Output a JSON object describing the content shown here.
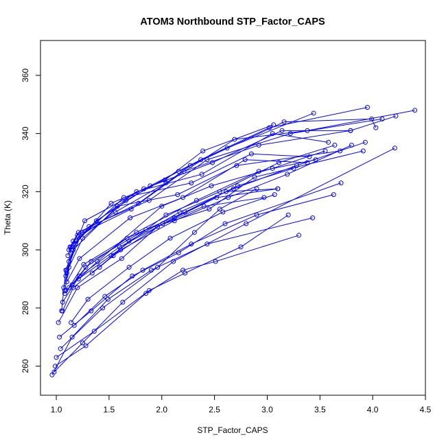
{
  "chart_data": {
    "type": "line",
    "title": "ATOM3 Northbound STP_Factor_CAPS",
    "xlabel": "STP_Factor_CAPS",
    "ylabel": "Theta (K)",
    "xlim": [
      0.85,
      4.5
    ],
    "ylim": [
      250,
      372
    ],
    "xticks": [
      1.0,
      1.5,
      2.0,
      2.5,
      3.0,
      3.5,
      4.0,
      4.5
    ],
    "xtick_labels": [
      "1.0",
      "1.5",
      "2.0",
      "2.5",
      "3.0",
      "3.5",
      "4.0",
      "4.5"
    ],
    "yticks": [
      260,
      280,
      300,
      320,
      340,
      360
    ],
    "ytick_labels": [
      "260",
      "280",
      "300",
      "320",
      "340",
      "360"
    ],
    "grid": false,
    "color": "#0000ff",
    "marker": "open-circle",
    "series": [
      {
        "x": [
          1.05,
          1.09,
          1.18,
          1.52,
          2.03,
          2.39,
          3.06
        ],
        "y": [
          279,
          293,
          302,
          316,
          324,
          334,
          343
        ]
      },
      {
        "x": [
          1.08,
          1.12,
          1.25,
          1.66,
          2.16,
          2.62,
          3.44
        ],
        "y": [
          286,
          294,
          304,
          317,
          327,
          335,
          347
        ]
      },
      {
        "x": [
          1.1,
          1.14,
          1.38,
          1.89,
          2.37,
          3.02,
          3.95
        ],
        "y": [
          292,
          301,
          310,
          322,
          331,
          342,
          349
        ]
      },
      {
        "x": [
          1.11,
          1.16,
          1.56,
          2.04,
          2.69,
          3.38,
          4.4
        ],
        "y": [
          298,
          303,
          313,
          323,
          338,
          341,
          348
        ]
      },
      {
        "x": [
          1.12,
          1.2,
          1.71,
          2.21,
          2.92,
          3.79,
          4.22
        ],
        "y": [
          300,
          305,
          314,
          327,
          336,
          341,
          346
        ]
      },
      {
        "x": [
          1.13,
          1.21,
          1.78,
          2.27,
          3.16,
          3.99,
          4.03
        ],
        "y": [
          301,
          306,
          316,
          329,
          344,
          345,
          342
        ]
      },
      {
        "x": [
          1.14,
          1.31,
          1.88,
          2.43,
          3.22,
          4.09
        ],
        "y": [
          300,
          308,
          317,
          331,
          340,
          345
        ]
      },
      {
        "x": [
          1.12,
          1.27,
          1.83,
          2.48,
          3.14,
          3.79
        ],
        "y": [
          296,
          310,
          321,
          330,
          341,
          341
        ]
      },
      {
        "x": [
          1.1,
          1.24,
          1.76,
          2.38,
          3.05,
          3.58
        ],
        "y": [
          293,
          306,
          320,
          326,
          340,
          337
        ]
      },
      {
        "x": [
          1.09,
          1.19,
          1.64,
          2.28,
          2.85,
          3.4
        ],
        "y": [
          291,
          303,
          318,
          323,
          333,
          332
        ]
      },
      {
        "x": [
          1.07,
          1.16,
          1.58,
          2.15,
          2.71,
          3.69
        ],
        "y": [
          287,
          300,
          315,
          319,
          329,
          334
        ]
      },
      {
        "x": [
          1.1,
          1.22,
          1.7,
          2.2,
          2.79,
          3.38
        ],
        "y": [
          289,
          297,
          311,
          318,
          331,
          330
        ]
      },
      {
        "x": [
          1.12,
          1.26,
          1.76,
          2.33,
          2.92,
          3.46
        ],
        "y": [
          287,
          295,
          306,
          317,
          327,
          331
        ]
      },
      {
        "x": [
          1.15,
          1.33,
          1.85,
          2.45,
          2.88,
          3.91
        ],
        "y": [
          288,
          296,
          307,
          314,
          325,
          334
        ]
      },
      {
        "x": [
          1.08,
          1.28,
          1.67,
          2.22,
          2.72,
          3.25
        ],
        "y": [
          285,
          294,
          304,
          313,
          322,
          328
        ]
      },
      {
        "x": [
          1.06,
          1.22,
          1.6,
          2.12,
          2.61,
          3.1
        ],
        "y": [
          282,
          291,
          301,
          311,
          320,
          321
        ]
      },
      {
        "x": [
          1.06,
          1.16,
          1.54,
          2.01,
          2.52,
          3.1
        ],
        "y": [
          279,
          287,
          298,
          309,
          318,
          321
        ]
      },
      {
        "x": [
          1.02,
          1.2,
          1.62,
          1.96,
          2.4,
          2.97
        ],
        "y": [
          275,
          287,
          297,
          308,
          315,
          318
        ]
      },
      {
        "x": [
          1.14,
          1.3,
          1.69,
          2.08,
          2.58,
          3.07
        ],
        "y": [
          275,
          283,
          294,
          304,
          313,
          319
        ]
      },
      {
        "x": [
          1.17,
          1.46,
          1.82,
          2.28,
          2.9,
          3.63
        ],
        "y": [
          274,
          284,
          293,
          302,
          312,
          319
        ]
      },
      {
        "x": [
          1.03,
          1.33,
          1.72,
          2.16,
          2.6,
          3.7
        ],
        "y": [
          270,
          279,
          291,
          299,
          309,
          323
        ]
      },
      {
        "x": [
          0.96,
          1.15,
          1.49,
          1.9,
          2.43,
          3.43
        ],
        "y": [
          257,
          270,
          283,
          293,
          302,
          311
        ]
      },
      {
        "x": [
          0.98,
          1.25,
          1.63,
          2.11,
          2.8,
          4.21
        ],
        "y": [
          258,
          268,
          282,
          296,
          309,
          335
        ]
      },
      {
        "x": [
          0.99,
          1.28,
          1.85,
          2.2,
          2.51,
          3.3
        ],
        "y": [
          260,
          267,
          285,
          293,
          296,
          305
        ]
      },
      {
        "x": [
          1.0,
          1.36,
          1.88,
          2.22,
          2.75,
          3.2
        ],
        "y": [
          263,
          272,
          286,
          292,
          301,
          312
        ]
      },
      {
        "x": [
          1.04,
          1.44,
          1.96,
          2.31,
          2.55,
          2.9
        ],
        "y": [
          266,
          280,
          294,
          306,
          314,
          321
        ]
      },
      {
        "x": [
          1.09,
          1.39,
          2.0,
          2.47,
          3.05,
          3.55
        ],
        "y": [
          286,
          296,
          315,
          322,
          328,
          334
        ]
      },
      {
        "x": [
          1.21,
          1.52,
          2.04,
          2.55,
          3.11,
          3.64
        ],
        "y": [
          290,
          298,
          312,
          320,
          330,
          336
        ]
      },
      {
        "x": [
          1.34,
          1.61,
          2.12,
          2.63,
          3.19,
          3.8
        ],
        "y": [
          292,
          300,
          310,
          318,
          326,
          336
        ]
      },
      {
        "x": [
          1.41,
          1.69,
          2.17,
          2.68,
          3.28,
          3.93
        ],
        "y": [
          294,
          303,
          313,
          321,
          329,
          337
        ]
      }
    ]
  }
}
